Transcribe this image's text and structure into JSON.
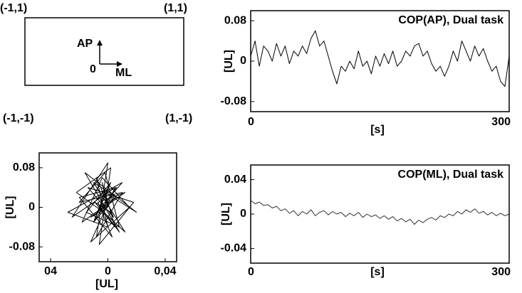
{
  "diagram": {
    "corners": [
      "(-1,1)",
      "(1,1)",
      "(-1,-1)",
      "(1,-1)"
    ],
    "up_label": "AP",
    "origin_label": "0",
    "right_label": "ML"
  },
  "chart_data": [
    {
      "type": "line",
      "title": "COP(AP), Dual task",
      "xlabel": "[s]",
      "ylabel": "[UL]",
      "xlim": [
        0,
        300
      ],
      "xticks": [
        0,
        300
      ],
      "ylim": [
        -0.1,
        0.1
      ],
      "yticks": [
        0.08,
        0,
        -0.08
      ],
      "x": [
        0,
        5,
        10,
        15,
        20,
        25,
        30,
        35,
        40,
        45,
        50,
        55,
        60,
        65,
        70,
        75,
        80,
        85,
        90,
        95,
        100,
        105,
        110,
        115,
        120,
        125,
        130,
        135,
        140,
        145,
        150,
        155,
        160,
        165,
        170,
        175,
        180,
        185,
        190,
        195,
        200,
        205,
        210,
        215,
        220,
        225,
        230,
        235,
        240,
        245,
        250,
        255,
        260,
        265,
        270,
        275,
        280,
        285,
        290,
        295,
        300
      ],
      "series": [
        {
          "color": "#000000",
          "values": [
            0.01,
            0.04,
            -0.01,
            0.03,
            0.02,
            0.0,
            0.035,
            0.01,
            0.03,
            -0.005,
            0.02,
            0.01,
            0.03,
            0.015,
            0.045,
            0.06,
            0.03,
            0.04,
            0.01,
            -0.02,
            -0.045,
            -0.01,
            -0.02,
            0.0,
            -0.015,
            0.02,
            -0.01,
            0.0,
            -0.025,
            0.01,
            -0.01,
            0.015,
            -0.005,
            0.02,
            -0.01,
            0.0,
            0.02,
            0.01,
            0.03,
            0.035,
            0.01,
            0.02,
            -0.005,
            -0.02,
            -0.01,
            -0.03,
            -0.01,
            0.02,
            0.0,
            0.04,
            0.02,
            0.0,
            0.03,
            0.01,
            0.025,
            0.0,
            -0.02,
            -0.01,
            -0.04,
            -0.05,
            0.01
          ]
        }
      ]
    },
    {
      "type": "line",
      "title": "COP(ML), Dual task",
      "xlabel": "[s]",
      "ylabel": "[UL]",
      "xlim": [
        0,
        300
      ],
      "xticks": [
        0,
        300
      ],
      "ylim": [
        -0.057,
        0.057
      ],
      "yticks": [
        0.04,
        0,
        -0.04
      ],
      "x": [
        0,
        5,
        10,
        15,
        20,
        25,
        30,
        35,
        40,
        45,
        50,
        55,
        60,
        65,
        70,
        75,
        80,
        85,
        90,
        95,
        100,
        105,
        110,
        115,
        120,
        125,
        130,
        135,
        140,
        145,
        150,
        155,
        160,
        165,
        170,
        175,
        180,
        185,
        190,
        195,
        200,
        205,
        210,
        215,
        220,
        225,
        230,
        235,
        240,
        245,
        250,
        255,
        260,
        265,
        270,
        275,
        280,
        285,
        290,
        295,
        300
      ],
      "series": [
        {
          "color": "#333333",
          "values": [
            0.016,
            0.012,
            0.014,
            0.01,
            0.011,
            0.007,
            0.009,
            0.004,
            0.006,
            0.001,
            0.004,
            -0.002,
            0.003,
            0.0,
            0.005,
            -0.002,
            0.002,
            0.004,
            -0.001,
            0.003,
            0.0,
            0.002,
            -0.003,
            0.001,
            -0.002,
            0.002,
            -0.004,
            0.0,
            -0.003,
            -0.001,
            -0.005,
            -0.002,
            -0.006,
            -0.003,
            -0.008,
            -0.005,
            -0.009,
            -0.006,
            -0.012,
            -0.007,
            -0.01,
            -0.006,
            -0.004,
            -0.007,
            -0.002,
            -0.004,
            0.0,
            -0.002,
            0.003,
            0.0,
            0.005,
            0.002,
            0.006,
            0.001,
            0.003,
            -0.001,
            0.002,
            -0.002,
            0.001,
            -0.002,
            0.0
          ]
        }
      ]
    },
    {
      "type": "line",
      "xlabel": "[UL]",
      "ylabel": "[UL]",
      "xlim": [
        -0.048,
        0.048
      ],
      "xticks": [
        {
          "value": -0.04,
          "label": "04"
        },
        0,
        {
          "value": 0.04,
          "label": "0,04"
        }
      ],
      "ylim": [
        -0.11,
        0.11
      ],
      "yticks": [
        0.08,
        0,
        -0.08
      ],
      "x": [
        -0.005,
        0.005,
        -0.01,
        0.002,
        -0.015,
        0.008,
        -0.002,
        -0.02,
        0.01,
        -0.008,
        0.0,
        -0.025,
        0.005,
        -0.012,
        0.015,
        -0.004,
        -0.018,
        0.006,
        -0.01,
        0.012,
        -0.003,
        -0.022,
        0.002,
        -0.006,
        0.018,
        -0.014,
        0.004,
        -0.008,
        0.0,
        -0.028,
        0.01,
        -0.005,
        0.008,
        -0.016,
        0.02,
        -0.002,
        -0.01,
        0.006,
        -0.02,
        0.003,
        -0.007,
        0.012,
        -0.012,
        0.0,
        -0.004,
        0.005,
        -0.009,
        0.002
      ],
      "series": [
        {
          "color": "#000000",
          "values": [
            0.0,
            0.02,
            -0.03,
            0.05,
            -0.01,
            -0.04,
            0.07,
            0.01,
            0.03,
            -0.06,
            0.09,
            -0.02,
            0.04,
            -0.07,
            0.0,
            0.06,
            -0.03,
            0.02,
            0.05,
            -0.05,
            -0.01,
            0.03,
            0.08,
            -0.075,
            0.01,
            0.04,
            -0.02,
            0.06,
            -0.04,
            -0.01,
            0.05,
            0.0,
            -0.05,
            0.07,
            -0.01,
            0.03,
            -0.03,
            0.04,
            0.02,
            -0.06,
            0.01,
            0.03,
            -0.02,
            0.0,
            0.05,
            -0.04,
            0.01,
            -0.01
          ]
        }
      ]
    }
  ]
}
